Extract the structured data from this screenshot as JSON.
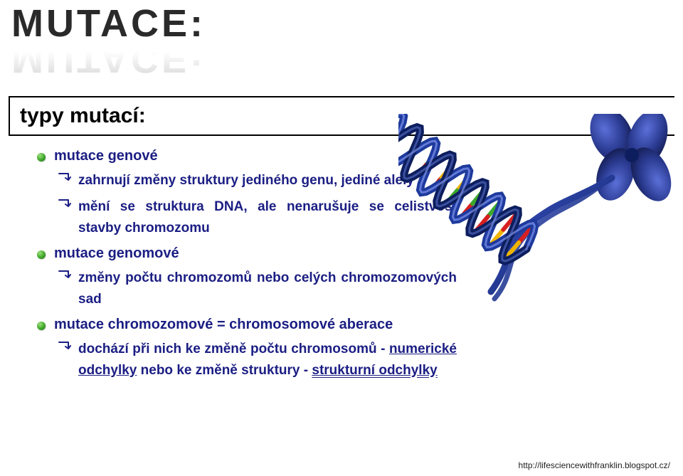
{
  "title": "MUTACE:",
  "subtitle": "typy mutací:",
  "heading1": "mutace genové",
  "sub1a": "zahrnují změny struktury jediného genu, jediné alely",
  "sub1b": "mění se struktura DNA, ale nenarušuje se celistvost stavby chromozomu",
  "heading2": "mutace genomové",
  "sub2a": "změny počtu chromozomů nebo celých chromozomových sad",
  "heading3": "mutace chromozomové = chromosomové aberace",
  "sub3a_pre": "dochází při nich ke změně počtu chromosomů - ",
  "sub3a_u1": "numerické odchylky",
  "sub3a_mid": " nebo ke změně struktury - ",
  "sub3a_u2": "strukturní odchylky",
  "footer_url": "http://lifesciencewithfranklin.blogspot.cz/",
  "colors": {
    "text_main": "#1b1e83",
    "title_dark": "#2a2a2a",
    "bg": "#ffffff",
    "border": "#000000"
  },
  "dna": {
    "strand_colors": [
      "#1e3a9c",
      "#0d1e5e"
    ],
    "chromo_color": "#2a3a90",
    "base_pairs": [
      {
        "c1": "#d62020",
        "c2": "#f0b400"
      },
      {
        "c1": "#f0b400",
        "c2": "#d62020"
      },
      {
        "c1": "#3aa82b",
        "c2": "#d62020"
      },
      {
        "c1": "#d62020",
        "c2": "#3aa82b"
      },
      {
        "c1": "#f0b400",
        "c2": "#3aa82b"
      },
      {
        "c1": "#d62020",
        "c2": "#f0b400"
      },
      {
        "c1": "#3aa82b",
        "c2": "#d62020"
      },
      {
        "c1": "#f0b400",
        "c2": "#d62020"
      },
      {
        "c1": "#d62020",
        "c2": "#3aa82b"
      },
      {
        "c1": "#3aa82b",
        "c2": "#f0b400"
      },
      {
        "c1": "#d62020",
        "c2": "#f0b400"
      },
      {
        "c1": "#f0b400",
        "c2": "#3aa82b"
      }
    ]
  }
}
